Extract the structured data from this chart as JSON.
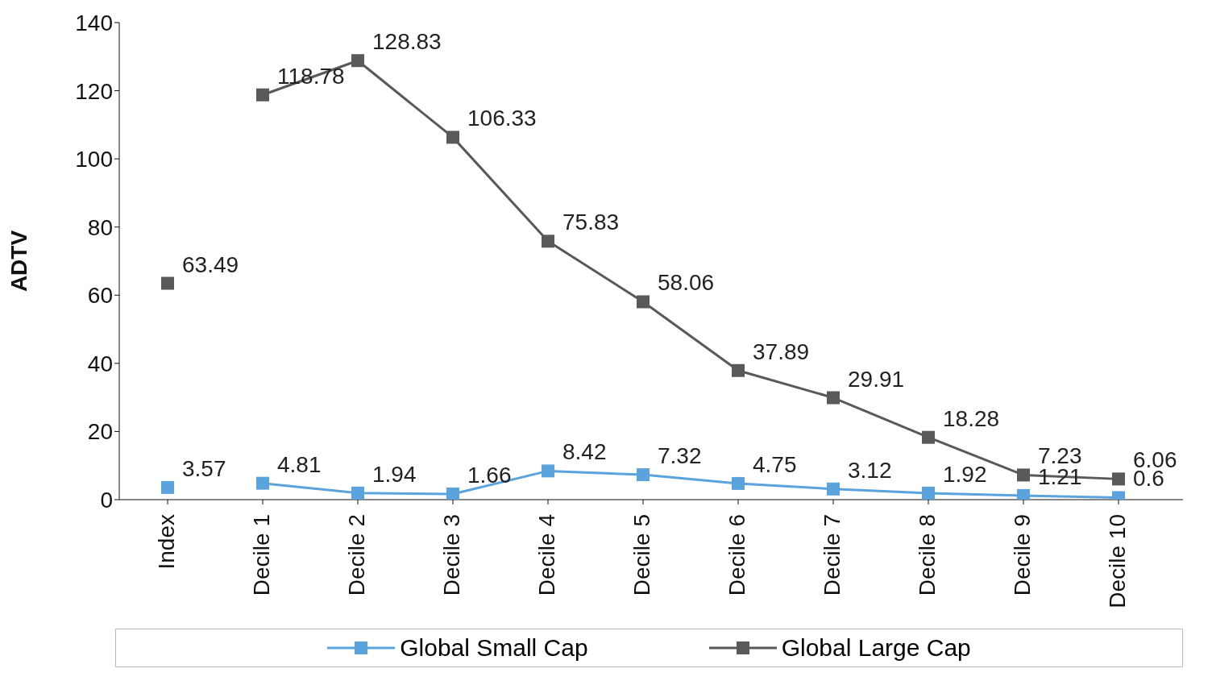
{
  "chart_data": {
    "type": "line",
    "ylabel": "ADTV",
    "categories": [
      "Index",
      "Decile 1",
      "Decile 2",
      "Decile 3",
      "Decile 4",
      "Decile 5",
      "Decile 6",
      "Decile 7",
      "Decile 8",
      "Decile 9",
      "Decile 10"
    ],
    "series": [
      {
        "name": "Global Small Cap",
        "color": "#5ba3dc",
        "values": [
          null,
          4.81,
          1.94,
          1.66,
          8.42,
          7.32,
          4.75,
          3.12,
          1.92,
          1.21,
          0.6
        ]
      },
      {
        "name": "Global Large Cap",
        "color": "#595959",
        "values": [
          null,
          118.78,
          128.83,
          106.33,
          75.83,
          58.06,
          37.89,
          29.91,
          18.28,
          7.23,
          6.06
        ]
      },
      {
        "type": "scatter",
        "color": "#5ba3dc",
        "x": [
          "Index"
        ],
        "values": [
          3.57
        ]
      },
      {
        "type": "scatter",
        "color": "#595959",
        "x": [
          "Index"
        ],
        "values": [
          63.49
        ]
      }
    ],
    "ylim": [
      0,
      140
    ],
    "yticks": [
      0,
      20,
      40,
      60,
      80,
      100,
      120,
      140
    ],
    "grid": false,
    "legend": "bottom",
    "marker": "square",
    "line_style": "solid",
    "data_labels": true
  }
}
